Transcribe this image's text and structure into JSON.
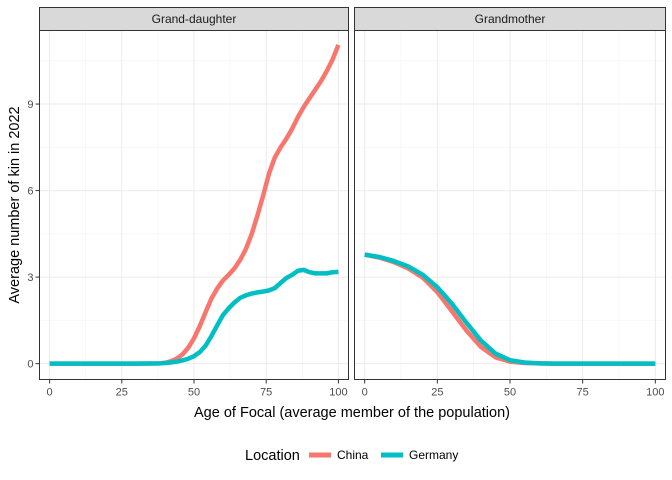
{
  "chart_data": {
    "type": "line",
    "xlabel": "Age of Focal (average member of the population)",
    "ylabel": "Average number of kin in 2022",
    "xlim": [
      -3.5,
      103.5
    ],
    "ylim": [
      -0.55,
      11.55
    ],
    "x_ticks": [
      0,
      25,
      50,
      75,
      100
    ],
    "y_ticks": [
      0,
      3,
      6,
      9
    ],
    "x_tick_labels": [
      "0",
      "25",
      "50",
      "75",
      "100"
    ],
    "y_tick_labels": [
      "0",
      "3",
      "6",
      "9"
    ],
    "grid": true,
    "legend": {
      "title": "Location",
      "position": "bottom",
      "entries": [
        {
          "name": "China",
          "color": "#F8766D"
        },
        {
          "name": "Germany",
          "color": "#00BFC4"
        }
      ]
    },
    "facets": [
      {
        "label": "Grand-daughter",
        "series": [
          {
            "name": "China",
            "color": "#F8766D",
            "x": [
              0,
              10,
              20,
              30,
              38,
              40,
              42,
              44,
              46,
              48,
              50,
              52,
              54,
              56,
              58,
              60,
              62,
              64,
              66,
              68,
              70,
              72,
              74,
              76,
              78,
              80,
              82,
              84,
              86,
              88,
              90,
              92,
              94,
              96,
              98,
              100
            ],
            "y": [
              0,
              0,
              0,
              0,
              0.01,
              0.03,
              0.08,
              0.17,
              0.32,
              0.55,
              0.88,
              1.3,
              1.78,
              2.25,
              2.6,
              2.88,
              3.08,
              3.3,
              3.6,
              3.98,
              4.5,
              5.15,
              5.85,
              6.6,
              7.15,
              7.5,
              7.8,
              8.15,
              8.55,
              8.9,
              9.2,
              9.5,
              9.8,
              10.15,
              10.55,
              11.05
            ]
          },
          {
            "name": "Germany",
            "color": "#00BFC4",
            "x": [
              0,
              10,
              20,
              30,
              38,
              40,
              42,
              44,
              46,
              48,
              50,
              52,
              54,
              56,
              58,
              60,
              62,
              64,
              66,
              68,
              70,
              72,
              74,
              76,
              78,
              80,
              82,
              84,
              86,
              88,
              90,
              92,
              94,
              96,
              98,
              100
            ],
            "y": [
              0,
              0,
              0,
              0,
              0.01,
              0.02,
              0.04,
              0.07,
              0.11,
              0.17,
              0.26,
              0.4,
              0.62,
              0.95,
              1.32,
              1.68,
              1.92,
              2.12,
              2.28,
              2.37,
              2.43,
              2.47,
              2.5,
              2.54,
              2.62,
              2.8,
              2.97,
              3.08,
              3.22,
              3.25,
              3.17,
              3.13,
              3.13,
              3.13,
              3.17,
              3.18
            ]
          }
        ]
      },
      {
        "label": "Grandmother",
        "series": [
          {
            "name": "China",
            "color": "#F8766D",
            "x": [
              0,
              5,
              10,
              15,
              20,
              25,
              30,
              35,
              40,
              45,
              50,
              55,
              60,
              65,
              70,
              80,
              90,
              100
            ],
            "y": [
              3.78,
              3.68,
              3.52,
              3.3,
              2.98,
              2.48,
              1.82,
              1.15,
              0.58,
              0.22,
              0.07,
              0.02,
              0.01,
              0,
              0,
              0,
              0,
              0
            ]
          },
          {
            "name": "Germany",
            "color": "#00BFC4",
            "x": [
              0,
              5,
              10,
              15,
              20,
              25,
              30,
              35,
              40,
              45,
              50,
              55,
              60,
              65,
              70,
              80,
              90,
              100
            ],
            "y": [
              3.78,
              3.7,
              3.56,
              3.37,
              3.08,
              2.65,
              2.08,
              1.42,
              0.8,
              0.35,
              0.12,
              0.04,
              0.01,
              0,
              0,
              0,
              0,
              0
            ]
          }
        ]
      }
    ]
  }
}
